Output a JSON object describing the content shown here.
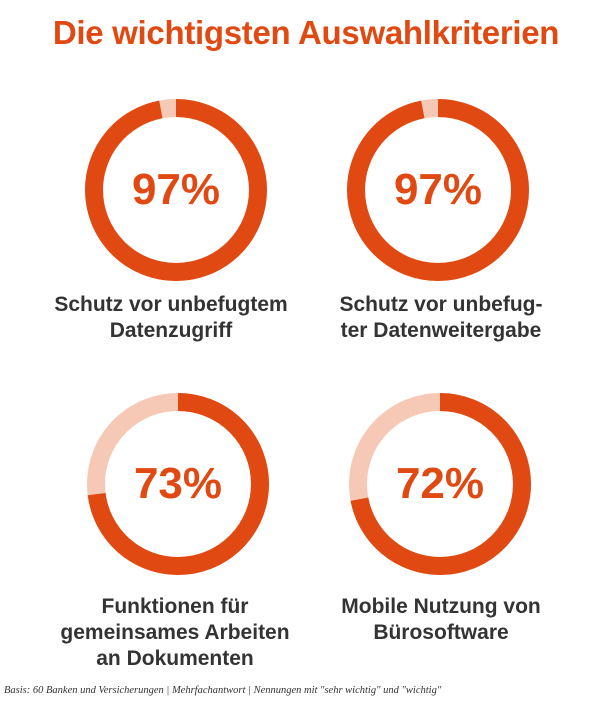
{
  "title": "Die wichtigsten Auswahlkriterien",
  "colors": {
    "accent": "#e04a12",
    "track": "#f6c9b6",
    "text": "#333333"
  },
  "chart_data": [
    {
      "type": "pie",
      "value": 97,
      "percent_label": "97%",
      "label": "Schutz vor unbefugtem\nDatenzugriff"
    },
    {
      "type": "pie",
      "value": 97,
      "percent_label": "97%",
      "label": "Schutz vor unbefug-\nter Datenweitergabe"
    },
    {
      "type": "pie",
      "value": 73,
      "percent_label": "73%",
      "label": "Funktionen für\ngemeinsames Arbeiten\nan Dokumenten"
    },
    {
      "type": "pie",
      "value": 72,
      "percent_label": "72%",
      "label": "Mobile Nutzung von\nBürosoftware"
    }
  ],
  "footnote": "Basis: 60 Banken und Versicherungen  |  Mehrfachantwort  |  Nennungen mit \"sehr wichtig\" und \"wichtig\""
}
